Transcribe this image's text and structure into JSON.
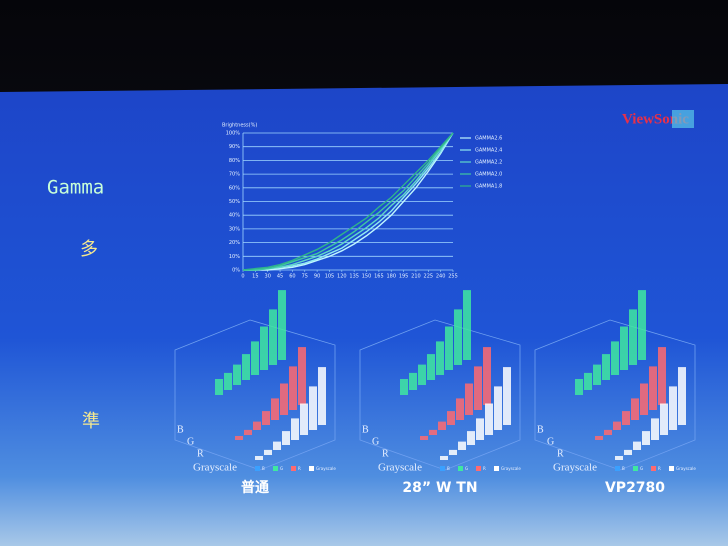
{
  "chart_data": {
    "type": "line",
    "y_label": "Brightness(%)",
    "x": [
      0,
      15,
      30,
      45,
      60,
      75,
      90,
      105,
      120,
      135,
      150,
      165,
      180,
      195,
      210,
      225,
      240,
      255
    ],
    "xlim": [
      0,
      255
    ],
    "xticks": [
      0,
      15,
      30,
      45,
      60,
      75,
      90,
      105,
      120,
      135,
      150,
      165,
      180,
      195,
      210,
      225,
      240,
      255
    ],
    "ylim": [
      0,
      100
    ],
    "yticks": [
      {
        "value": 0,
        "label": "0%"
      },
      {
        "value": 10,
        "label": "10%"
      },
      {
        "value": 20,
        "label": "20%"
      },
      {
        "value": 30,
        "label": "30%"
      },
      {
        "value": 40,
        "label": "40%"
      },
      {
        "value": 50,
        "label": "50%"
      },
      {
        "value": 60,
        "label": "60%"
      },
      {
        "value": 70,
        "label": "70%"
      },
      {
        "value": 80,
        "label": "80%"
      },
      {
        "value": 90,
        "label": "90%"
      },
      {
        "value": 100,
        "label": "100%"
      }
    ],
    "grid": true,
    "legend": "right",
    "series": [
      {
        "name": "GAMMA2.6",
        "color": "#bff6ff",
        "values": [
          0,
          0,
          0,
          1,
          2,
          4,
          7,
          10,
          14,
          19,
          25,
          32,
          40,
          50,
          60,
          72,
          85,
          100
        ]
      },
      {
        "name": "GAMMA2.4",
        "color": "#8fe9f0",
        "values": [
          0,
          0,
          1,
          2,
          3,
          5,
          8,
          12,
          16,
          22,
          28,
          35,
          43,
          53,
          63,
          74,
          86,
          100
        ]
      },
      {
        "name": "GAMMA2.2",
        "color": "#5fd8c8",
        "values": [
          0,
          0,
          1,
          2,
          4,
          7,
          10,
          14,
          19,
          25,
          31,
          38,
          47,
          55,
          65,
          76,
          88,
          100
        ]
      },
      {
        "name": "GAMMA2.0",
        "color": "#3fc7a0",
        "values": [
          0,
          0,
          1,
          3,
          6,
          9,
          12,
          17,
          22,
          28,
          35,
          42,
          50,
          58,
          68,
          78,
          89,
          100
        ]
      },
      {
        "name": "GAMMA1.8",
        "color": "#2fb48a",
        "values": [
          0,
          1,
          2,
          4,
          7,
          11,
          15,
          20,
          26,
          32,
          38,
          46,
          53,
          62,
          71,
          80,
          90,
          100
        ]
      }
    ]
  },
  "slide": {
    "brand": "ViewSonic",
    "heading": "Gamma",
    "char_top": "多",
    "char_bottom": "準",
    "panels": [
      {
        "caption": "普通",
        "axis_labels": [
          "B",
          "G",
          "R",
          "Grayscale"
        ],
        "legend": [
          "B",
          "G",
          "R",
          "Grayscale"
        ]
      },
      {
        "caption": "28” W TN",
        "axis_labels": [
          "B",
          "G",
          "R",
          "Grayscale"
        ],
        "legend": [
          "B",
          "G",
          "R",
          "Grayscale"
        ]
      },
      {
        "caption": "VP2780",
        "axis_labels": [
          "B",
          "G",
          "R",
          "Grayscale"
        ],
        "legend": [
          "B",
          "G",
          "R",
          "Grayscale"
        ]
      }
    ]
  }
}
